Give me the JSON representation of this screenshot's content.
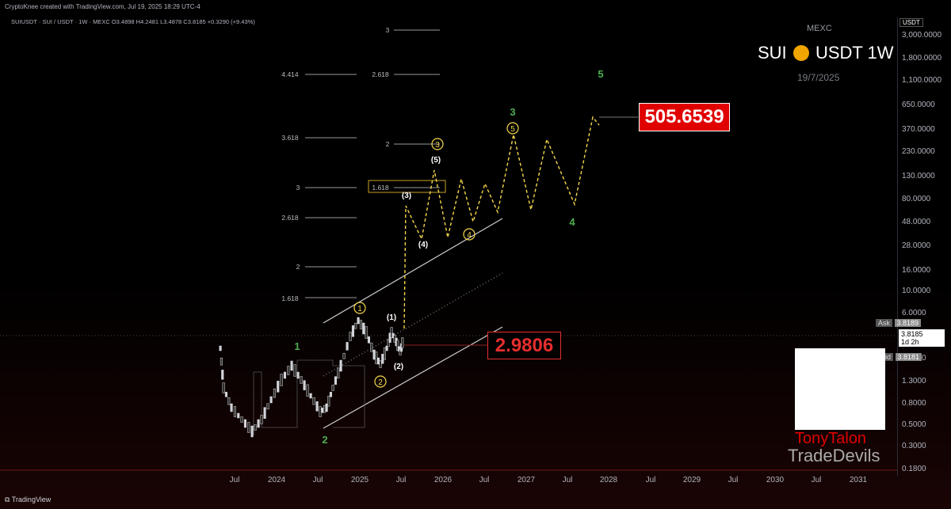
{
  "header": {
    "credit": "CryptoKnee created with TradingView.com, Jul 19, 2025 18:29 UTC-4",
    "symbol_line": "SUIUSDT · SUI / USDT · 1W · MEXC  O3.4898  H4.2481  L3.4878  C3.8185  +0.3290 (+9.43%)"
  },
  "watermark": {
    "exchange": "MEXC",
    "title_left": "SUI",
    "title_right": "USDT 1W",
    "date": "19/7/2025"
  },
  "price_axis": {
    "unit": "USDT",
    "ticks": [
      "3,000.0000",
      "1,800.0000",
      "1,100.0000",
      "650.0000",
      "370.0000",
      "230.0000",
      "130.0000",
      "80.0000",
      "48.0000",
      "28.0000",
      "16.0000",
      "10.0000",
      "6.0000",
      "2.2000",
      "1.3000",
      "0.8000",
      "0.5000",
      "0.3000",
      "0.1800"
    ],
    "ask_label": "Ask",
    "ask_value": "3.8189",
    "last_value": "3.8185",
    "countdown": "1d 2h",
    "bid_label": "Bid",
    "bid_value": "3.8181"
  },
  "time_axis": {
    "ticks": [
      "Jul",
      "2024",
      "Jul",
      "2025",
      "Jul",
      "2026",
      "Jul",
      "2027",
      "Jul",
      "2028",
      "Jul",
      "2029",
      "Jul",
      "2030",
      "Jul",
      "2031"
    ]
  },
  "chart_data": {
    "type": "line",
    "log_scale": true,
    "ylim": [
      0.18,
      3000
    ],
    "series": [
      {
        "values": [
          [
            "2023-05",
            2.1
          ],
          [
            "2023-06",
            0.8
          ],
          [
            "2023-08",
            0.55
          ],
          [
            "2023-10",
            0.42
          ],
          [
            "2023-12",
            1.2
          ],
          [
            "2024-01",
            1.6
          ],
          [
            "2024-03",
            2.0
          ],
          [
            "2024-04",
            1.2
          ],
          [
            "2024-06",
            0.9
          ],
          [
            "2024-08",
            0.62
          ],
          [
            "2024-09",
            1.5
          ],
          [
            "2024-10",
            2.3
          ],
          [
            "2024-11",
            3.0
          ],
          [
            "2024-12",
            4.5
          ],
          [
            "2025-01",
            5.3
          ],
          [
            "2025-02",
            3.4
          ],
          [
            "2025-04",
            2.2
          ],
          [
            "2025-05",
            3.9
          ],
          [
            "2025-06",
            2.6
          ],
          [
            "2025-07",
            3.8185
          ]
        ]
      },
      {
        "values": [
          [
            "2025-07",
            3.8
          ],
          [
            "2025-08",
            75
          ],
          [
            "2025-09",
            30
          ],
          [
            "2025-10",
            115
          ],
          [
            "2025-11",
            140
          ],
          [
            "2025-12",
            32
          ],
          [
            "2026-01",
            120
          ],
          [
            "2026-02",
            70
          ],
          [
            "2026-03",
            120
          ],
          [
            "2026-04",
            50
          ],
          [
            "2026-05",
            120
          ],
          [
            "2026-06",
            62
          ],
          [
            "2026-08",
            330
          ],
          [
            "2026-10",
            68
          ],
          [
            "2026-12",
            300
          ],
          [
            "2027-02",
            60
          ],
          [
            "2027-06",
            420
          ]
        ]
      }
    ],
    "annotations": {
      "price_targets": [
        "505.6539",
        "2.9806"
      ],
      "wave_green": [
        "1",
        "2",
        "3",
        "4",
        "5"
      ],
      "wave_circled": [
        "1",
        "2",
        "3",
        "4",
        "5"
      ],
      "wave_paren": [
        "(1)",
        "(2)",
        "(3)",
        "(4)",
        "(5)"
      ],
      "fib_left": [
        "4.414",
        "3.618",
        "3",
        "2.618",
        "2",
        "1.618"
      ],
      "fib_right": [
        "3",
        "2.618",
        "2",
        "1.618"
      ]
    }
  },
  "branding": {
    "line1": "TonyTalon",
    "line2": "TradeDevils",
    "app": "TradingView"
  },
  "colors": {
    "up": "#d1d4dc",
    "down": "#555",
    "wave_yellow": "#f5d74a",
    "green": "#4caf50",
    "target_red": "#e00000"
  }
}
